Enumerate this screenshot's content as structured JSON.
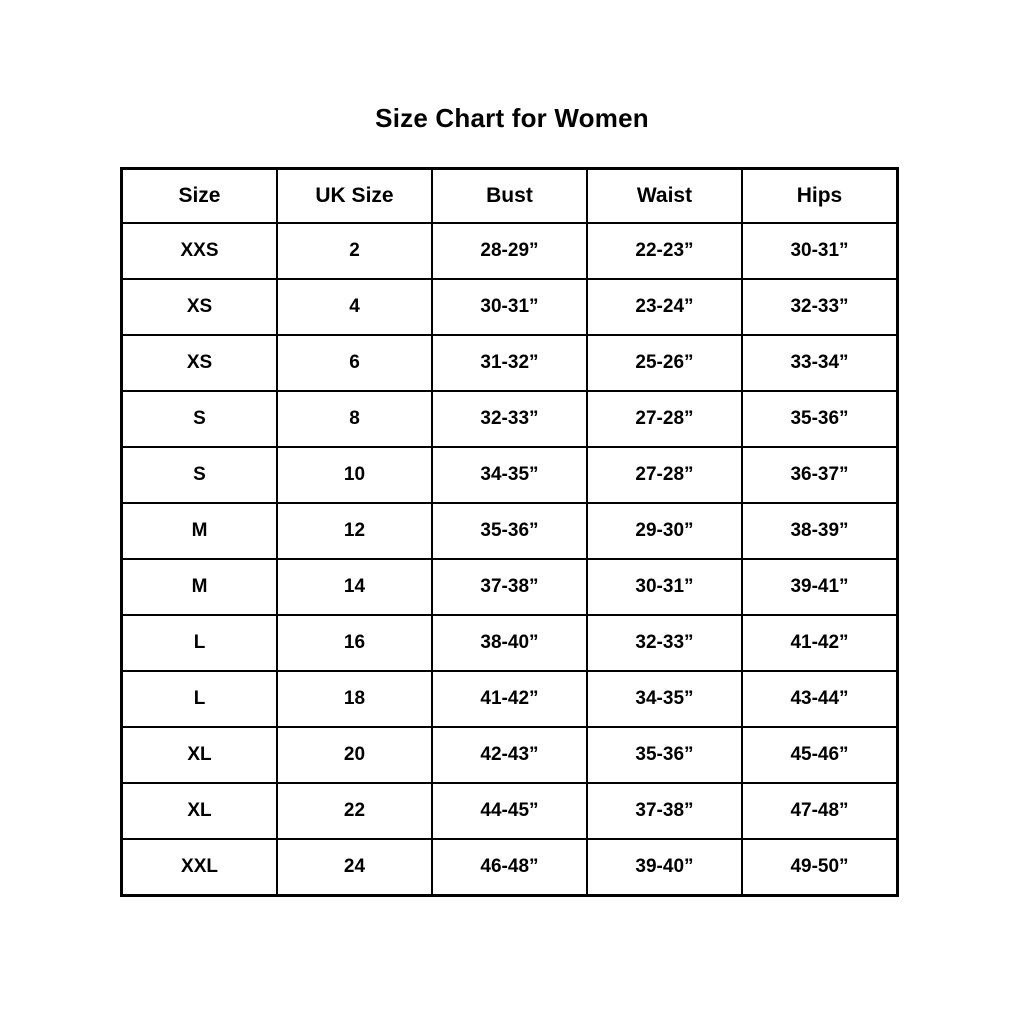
{
  "page": {
    "title": "Size Chart for Women"
  },
  "colors": {
    "background": "#ffffff",
    "text": "#000000",
    "border": "#000000"
  },
  "chart_data": {
    "type": "table",
    "title": "Size Chart for Women",
    "columns": [
      "Size",
      "UK Size",
      "Bust",
      "Waist",
      "Hips"
    ],
    "rows": [
      [
        "XXS",
        "2",
        "28-29”",
        "22-23”",
        "30-31”"
      ],
      [
        "XS",
        "4",
        "30-31”",
        "23-24”",
        "32-33”"
      ],
      [
        "XS",
        "6",
        "31-32”",
        "25-26”",
        "33-34”"
      ],
      [
        "S",
        "8",
        "32-33”",
        "27-28”",
        "35-36”"
      ],
      [
        "S",
        "10",
        "34-35”",
        "27-28”",
        "36-37”"
      ],
      [
        "M",
        "12",
        "35-36”",
        "29-30”",
        "38-39”"
      ],
      [
        "M",
        "14",
        "37-38”",
        "30-31”",
        "39-41”"
      ],
      [
        "L",
        "16",
        "38-40”",
        "32-33”",
        "41-42”"
      ],
      [
        "L",
        "18",
        "41-42”",
        "34-35”",
        "43-44”"
      ],
      [
        "XL",
        "20",
        "42-43”",
        "35-36”",
        "45-46”"
      ],
      [
        "XL",
        "22",
        "44-45”",
        "37-38”",
        "47-48”"
      ],
      [
        "XXL",
        "24",
        "46-48”",
        "39-40”",
        "49-50”"
      ]
    ]
  }
}
